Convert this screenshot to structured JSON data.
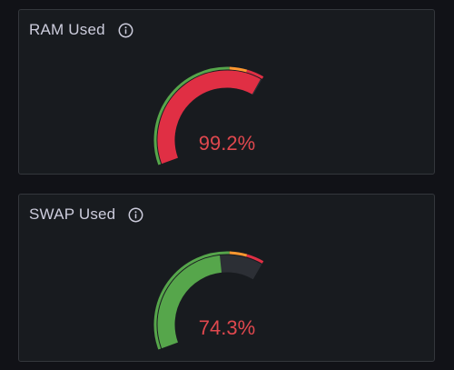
{
  "panels": [
    {
      "title": "RAM Used",
      "value": 99.2,
      "value_label": "99.2%",
      "min": 0,
      "max": 100
    },
    {
      "title": "SWAP Used",
      "value": 74.3,
      "value_label": "74.3%",
      "min": 0,
      "max": 100
    }
  ],
  "thresholds": [
    {
      "from": 0,
      "to": 80,
      "color": "#56a64b"
    },
    {
      "from": 80,
      "to": 90,
      "color": "#ff9830"
    },
    {
      "from": 90,
      "to": 100,
      "color": "#e02f44"
    }
  ],
  "colors": {
    "background": "#111217",
    "panel_bg": "#181b1f",
    "panel_border": "#34373c",
    "title_text": "#ccccdc",
    "value_fill": "#e0484e",
    "track": "#2c2f35"
  },
  "icons": {
    "info": "info-circle-icon"
  }
}
